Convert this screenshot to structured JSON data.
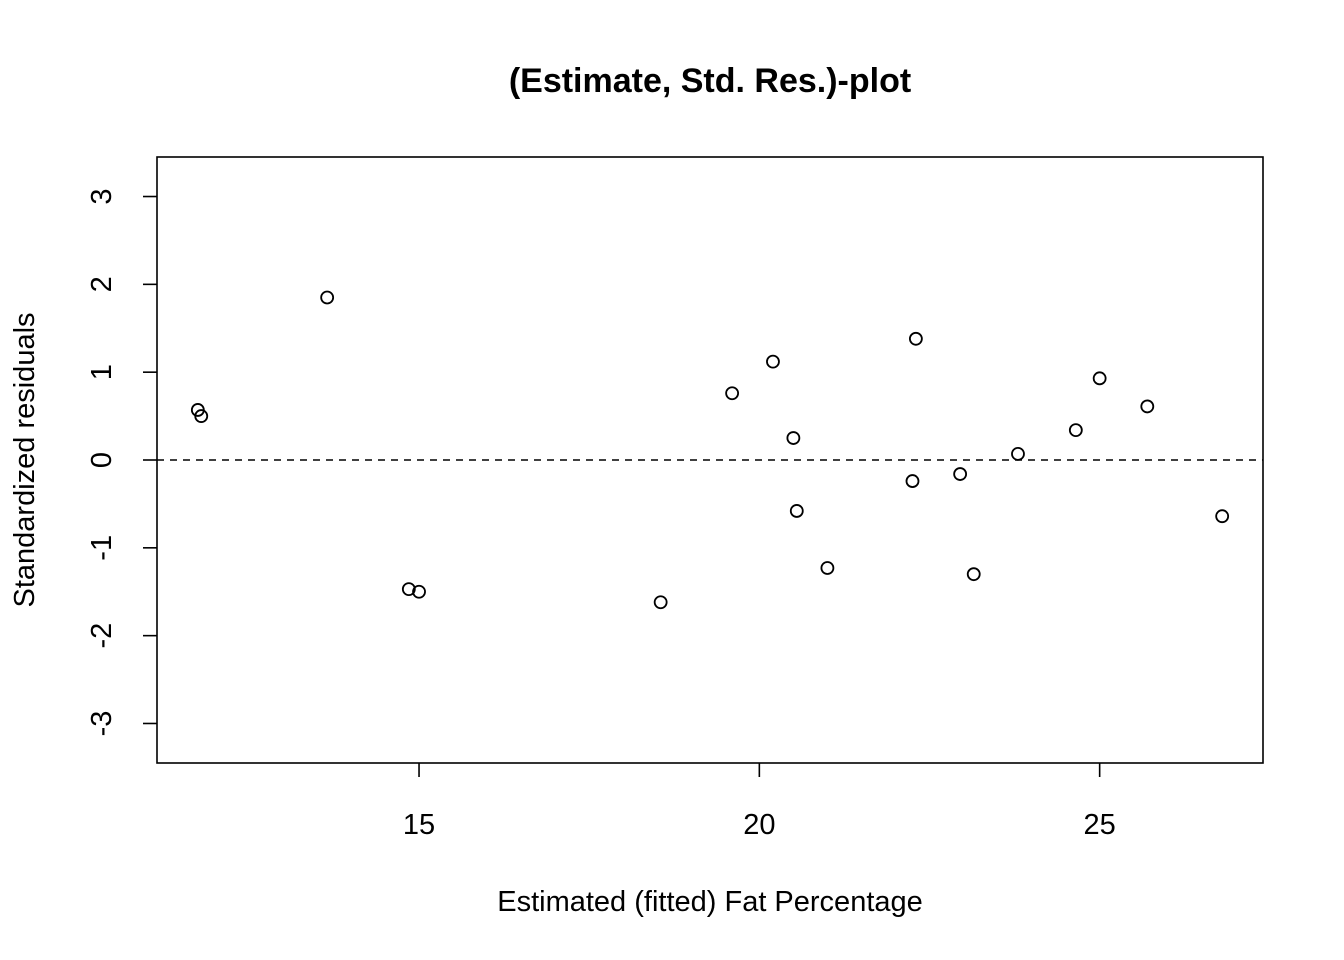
{
  "chart_data": {
    "type": "scatter",
    "title": "(Estimate, Std. Res.)-plot",
    "xlabel": "Estimated (fitted) Fat Percentage",
    "ylabel": "Standardized residuals",
    "xlim": [
      11.15,
      27.4
    ],
    "ylim": [
      -3.45,
      3.45
    ],
    "x_ticks": [
      15,
      20,
      25
    ],
    "x_tick_labels": [
      "15",
      "20",
      "25"
    ],
    "y_ticks": [
      -3,
      -2,
      -1,
      0,
      1,
      2,
      3
    ],
    "y_tick_labels": [
      "-3",
      "-2",
      "-1",
      "0",
      "1",
      "2",
      "3"
    ],
    "reference_line": {
      "y": 0,
      "style": "dashed"
    },
    "grid": false,
    "legend": "none",
    "marker": "open-circle",
    "points": [
      {
        "x": 11.75,
        "y": 0.57
      },
      {
        "x": 11.8,
        "y": 0.5
      },
      {
        "x": 13.65,
        "y": 1.85
      },
      {
        "x": 14.85,
        "y": -1.47
      },
      {
        "x": 15.0,
        "y": -1.5
      },
      {
        "x": 18.55,
        "y": -1.62
      },
      {
        "x": 19.6,
        "y": 0.76
      },
      {
        "x": 20.2,
        "y": 1.12
      },
      {
        "x": 20.5,
        "y": 0.25
      },
      {
        "x": 20.55,
        "y": -0.58
      },
      {
        "x": 21.0,
        "y": -1.23
      },
      {
        "x": 22.25,
        "y": -0.24
      },
      {
        "x": 22.3,
        "y": 1.38
      },
      {
        "x": 22.95,
        "y": -0.16
      },
      {
        "x": 23.15,
        "y": -1.3
      },
      {
        "x": 23.8,
        "y": 0.07
      },
      {
        "x": 24.65,
        "y": 0.34
      },
      {
        "x": 25.0,
        "y": 0.93
      },
      {
        "x": 25.7,
        "y": 0.61
      },
      {
        "x": 26.8,
        "y": -0.64
      }
    ]
  }
}
